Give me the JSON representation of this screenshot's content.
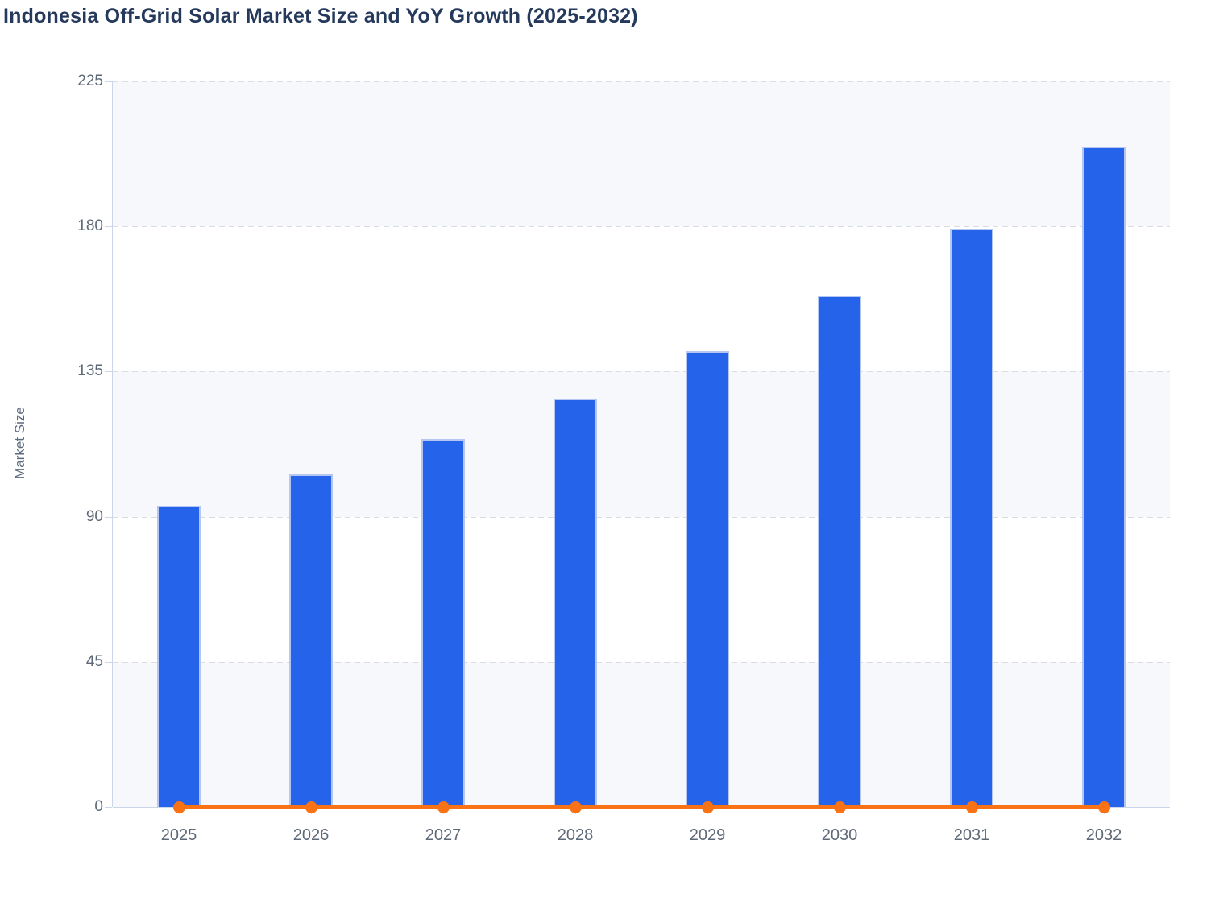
{
  "chart_data": {
    "type": "bar",
    "title": "Indonesia Off-Grid Solar Market Size and YoY Growth (2025-2032)",
    "categories": [
      "2025",
      "2026",
      "2027",
      "2028",
      "2029",
      "2030",
      "2031",
      "2032"
    ],
    "series": [
      {
        "name": "Market Size",
        "type": "bar",
        "color": "#2563eb",
        "values": [
          93.4,
          103.2,
          114.1,
          126.6,
          141.3,
          158.5,
          179.4,
          204.8
        ]
      },
      {
        "name": "YoY Growth",
        "type": "line",
        "color": "#f97316",
        "values": [
          0,
          0,
          0,
          0,
          0,
          0,
          0,
          0
        ]
      }
    ],
    "xlabel": "",
    "ylabel": "Market Size",
    "ylim": [
      0,
      225
    ],
    "yticks": [
      0,
      45,
      90,
      135,
      180,
      225
    ],
    "grid": "horizontal-dashed",
    "legend": "none",
    "alternating_bands": [
      [
        180,
        225
      ],
      [
        90,
        135
      ],
      [
        0,
        45
      ]
    ]
  },
  "colors": {
    "title_text": "#24395b",
    "tick_text": "#5e6977",
    "axis_line": "#ccd6eb",
    "gridline": "#d9dde3",
    "band_fill": "#f7f8fb",
    "bar_fill": "#2563eb",
    "bar_border": "#b5c6f3",
    "line_color": "#f97316"
  }
}
